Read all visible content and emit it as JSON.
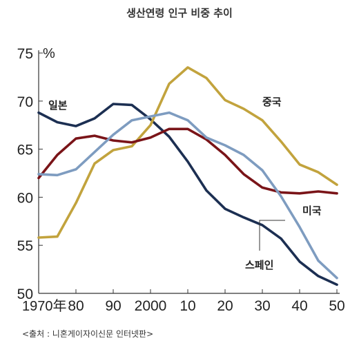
{
  "title": "생산연령 인구 비중 추이",
  "source": "<출처 : 니혼게이자이신문 인터넷판>",
  "chart_data": {
    "type": "line",
    "title": "생산연령 인구 비중 추이",
    "ylabel": "%",
    "xlabel": "",
    "ylim": [
      50,
      75
    ],
    "xlim": [
      1970,
      2050
    ],
    "y_ticks": [
      50,
      55,
      60,
      65,
      70,
      75
    ],
    "y_tick_labels": [
      "50",
      "55",
      "60",
      "65",
      "70",
      "75"
    ],
    "x_ticks": [
      1970,
      1980,
      1990,
      2000,
      2010,
      2020,
      2030,
      2040,
      2050
    ],
    "x_tick_labels": [
      "1970年",
      "80",
      "90",
      "2000",
      "10",
      "20",
      "30",
      "40",
      "50"
    ],
    "grid": false,
    "x": [
      1970,
      1975,
      1980,
      1985,
      1990,
      1995,
      2000,
      2005,
      2010,
      2015,
      2020,
      2025,
      2030,
      2035,
      2040,
      2045,
      2050
    ],
    "series": [
      {
        "name": "일본",
        "color": "#1c2f52",
        "values": [
          68.8,
          67.8,
          67.4,
          68.2,
          69.7,
          69.6,
          68.1,
          66.3,
          63.7,
          60.7,
          58.8,
          57.9,
          57.1,
          55.7,
          53.3,
          51.8,
          50.9
        ]
      },
      {
        "name": "중국",
        "color": "#c2a33d",
        "values": [
          55.8,
          55.9,
          59.4,
          63.5,
          64.9,
          65.3,
          67.5,
          71.8,
          73.5,
          72.4,
          70.1,
          69.2,
          68.0,
          65.8,
          63.4,
          62.6,
          61.3
        ]
      },
      {
        "name": "미국",
        "color": "#7a1418",
        "values": [
          62.0,
          64.4,
          66.1,
          66.4,
          65.9,
          65.7,
          66.2,
          67.1,
          67.1,
          66.0,
          64.4,
          62.4,
          61.0,
          60.5,
          60.4,
          60.6,
          60.4
        ]
      },
      {
        "name": "스페인",
        "color": "#7e9cc0",
        "values": [
          62.4,
          62.3,
          62.9,
          64.7,
          66.5,
          68.0,
          68.4,
          68.8,
          68.0,
          66.2,
          65.4,
          64.4,
          62.8,
          60.1,
          56.9,
          53.4,
          51.6
        ]
      }
    ],
    "annotations": [
      {
        "text": "일본",
        "series": "일본"
      },
      {
        "text": "중국",
        "series": "중국"
      },
      {
        "text": "미국",
        "series": "미국"
      },
      {
        "text": "스페인",
        "series": "스페인"
      }
    ]
  }
}
